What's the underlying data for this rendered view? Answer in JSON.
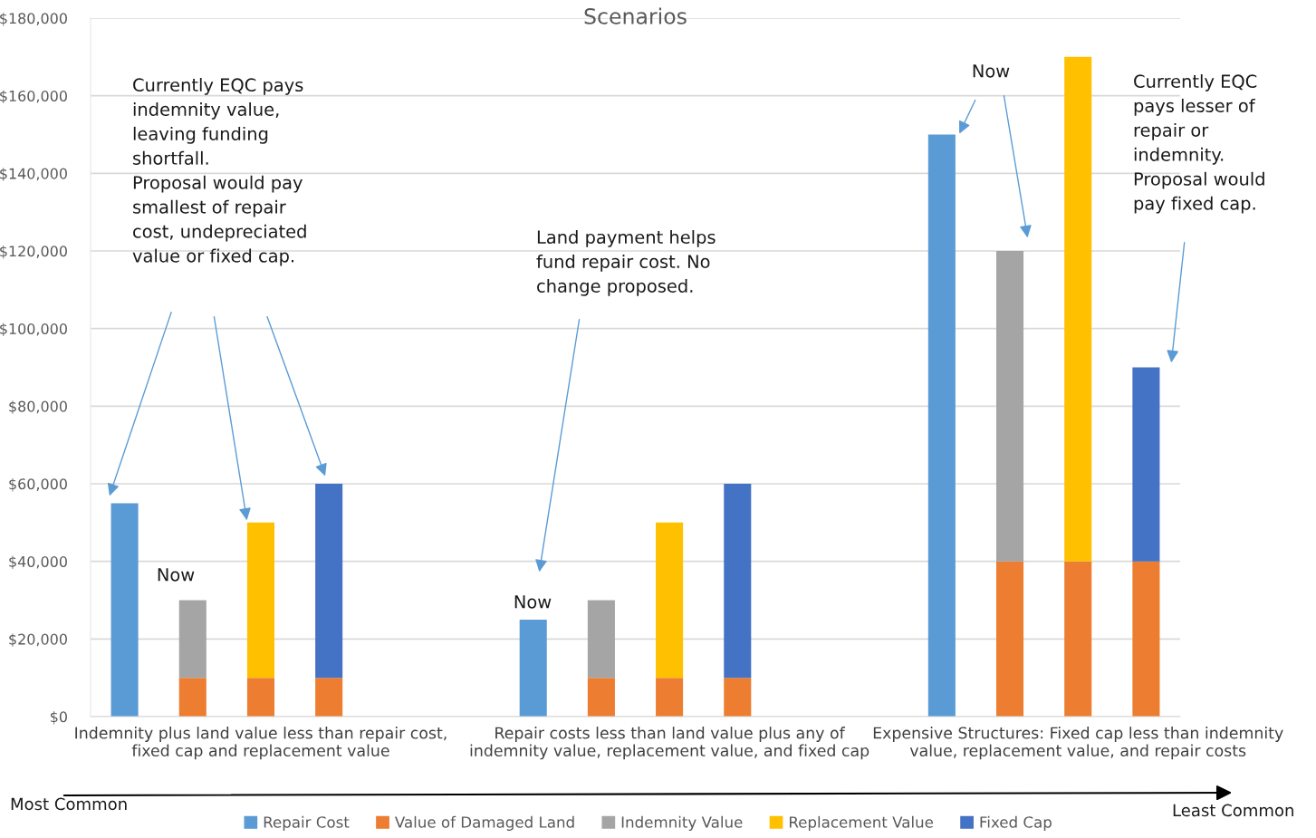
{
  "chart_data": {
    "type": "bar",
    "title": "Scenarios",
    "stacked": true,
    "categories": [
      null,
      null,
      "Indemnity plus land value less than repair cost,\nfixed cap and replacement value",
      null,
      null,
      null,
      null,
      null,
      "Repair costs less than land value plus any of\nindemnity value, replacement value, and fixed cap",
      null,
      null,
      null,
      null,
      null,
      "Expensive Structures: Fixed cap less than indemnity\nvalue, replacement value, and repair costs",
      null
    ],
    "series": [
      {
        "name": "Value of Damaged Land",
        "color": "#ed7d31",
        "values": [
          null,
          10000,
          10000,
          10000,
          null,
          null,
          null,
          10000,
          10000,
          10000,
          null,
          null,
          null,
          40000,
          40000,
          40000
        ]
      },
      {
        "name": "Repair Cost",
        "color": "#5b9bd5",
        "values": [
          55000,
          null,
          null,
          null,
          null,
          null,
          25000,
          null,
          null,
          null,
          null,
          null,
          150000,
          null,
          null,
          null
        ]
      },
      {
        "name": "Indemnity Value",
        "color": "#a5a5a5",
        "values": [
          null,
          20000,
          null,
          null,
          null,
          null,
          null,
          20000,
          null,
          null,
          null,
          null,
          null,
          80000,
          null,
          null
        ]
      },
      {
        "name": "Replacement Value",
        "color": "#ffc000",
        "values": [
          null,
          null,
          40000,
          null,
          null,
          null,
          null,
          null,
          40000,
          null,
          null,
          null,
          null,
          null,
          130000,
          null
        ]
      },
      {
        "name": "Fixed Cap",
        "color": "#4472c4",
        "values": [
          null,
          null,
          null,
          50000,
          null,
          null,
          null,
          null,
          null,
          50000,
          null,
          null,
          null,
          null,
          null,
          50000
        ]
      }
    ],
    "ylim": [
      0,
      180000
    ],
    "yticks": [
      {
        "value": 0,
        "label": "$0"
      },
      {
        "value": 20000,
        "label": "$20,000"
      },
      {
        "value": 40000,
        "label": "$40,000"
      },
      {
        "value": 60000,
        "label": "$60,000"
      },
      {
        "value": 80000,
        "label": "$80,000"
      },
      {
        "value": 100000,
        "label": "$100,000"
      },
      {
        "value": 120000,
        "label": "$120,000"
      },
      {
        "value": 140000,
        "label": "$140,000"
      },
      {
        "value": 160000,
        "label": "$160,000"
      },
      {
        "value": 180000,
        "label": "$180,000"
      }
    ],
    "grid": "y",
    "legend": "bottom",
    "annotations": [
      "Currently EQC pays\nindemnity value,\nleaving funding\nshortfall.\nProposal would pay\nsmallest of repair\ncost, undepreciated\nvalue or fixed cap.",
      "Now",
      "Land payment helps\nfund repair cost. No\nchange proposed.",
      "Now",
      "Now",
      "Currently EQC\npays lesser of\nrepair or\nindemnity.\nProposal would\npay fixed cap.",
      "Most Common",
      "Least Common"
    ]
  }
}
